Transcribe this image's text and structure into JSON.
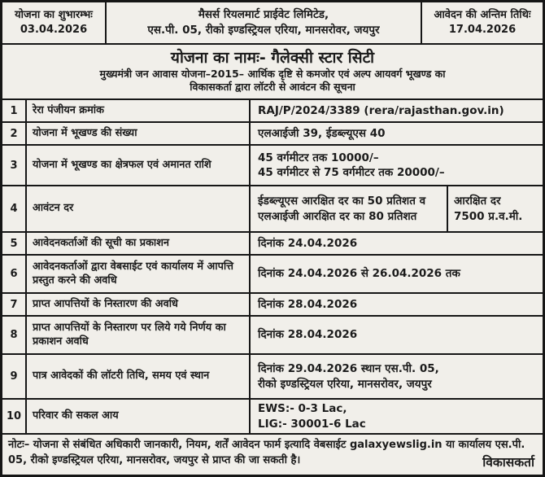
{
  "colors": {
    "border": "#161616",
    "background": "#f1efea",
    "text": "#1b1b1b"
  },
  "header": {
    "left": {
      "line1": "योजना का शुभारम्भः",
      "line2": "03.04.2026"
    },
    "center": {
      "line1": "मैसर्स रियलमार्ट प्राईवेट लिमिटेड,",
      "line2": "एस.पी. 05, रीको इण्डस्ट्रियल एरिया, मानसरोवर, जयपुर"
    },
    "right": {
      "line1": "आवेदन की अन्तिम तिथिः",
      "line2": "17.04.2026"
    }
  },
  "title": {
    "main": "योजना का नामः- गैलेक्सी स्टार सिटी",
    "sub1": "मुख्यमंत्री जन आवास योजना–2015– आर्थिक दृष्टि से कमजोर एवं अल्प आयवर्ग भूखण्ड का",
    "sub2": "विकासकर्ता द्वारा लॉटरी से आवंटन की सूचना"
  },
  "rows": [
    {
      "no": "1",
      "label": "रेरा पंजीयन क्रमांक",
      "value1": "RAJ/P/2024/3389 (rera/rajasthan.gov.in)"
    },
    {
      "no": "2",
      "label": "योजना में भूखण्ड की संख्या",
      "value1": "एलआईजी 39, ईडब्ल्यूएस 40"
    },
    {
      "no": "3",
      "label": "योजना में भूखण्ड का क्षेत्रफल एवं अमानत राशि",
      "value1": "45 वर्गमीटर तक 10000/–",
      "value2": "45 वर्गमीटर से 75 वर्गमीटर तक 20000/–"
    },
    {
      "no": "4",
      "label": "आवंटन दर",
      "value1": "ईडब्ल्यूएस आरक्षित दर का 50 प्रतिशत व",
      "value2": "एलआईजी आरक्षित दर का 80 प्रतिशत",
      "sub1": "आरक्षित दर",
      "sub2": "7500 प्र.व.मी."
    },
    {
      "no": "5",
      "label": "आवेदनकर्ताओं की सूची का प्रकाशन",
      "value1": "दिनांक 24.04.2026"
    },
    {
      "no": "6",
      "label": "आवेदनकर्ताओं द्वारा वेबसाईट एवं कार्यालय में आपत्ति प्रस्तुत करने की अवधि",
      "value1": "दिनांक 24.04.2026 से 26.04.2026 तक"
    },
    {
      "no": "7",
      "label": "प्राप्त आपत्तियों के निस्तारण की अवधि",
      "value1": "दिनांक 28.04.2026"
    },
    {
      "no": "8",
      "label": "प्राप्त आपत्तियों के निस्तारण पर लिये गये निर्णय का प्रकाशन अवधि",
      "value1": "दिनांक 28.04.2026"
    },
    {
      "no": "9",
      "label": "पात्र आवेदकों की लॉटरी तिथि, समय एवं स्थान",
      "value1": "दिनांक 29.04.2026 स्थान एस.पी. 05,",
      "value2": "रीको इण्डस्ट्रियल एरिया, मानसरोवर, जयपुर"
    },
    {
      "no": "10",
      "label": "परिवार की सकल आय",
      "value1": "EWS:- 0-3 Lac,",
      "value2": "LIG:- 30001-6 Lac"
    }
  ],
  "note": {
    "text": "नोटः– योजना से संबंधित अधिकारी जानकारी, नियम, शर्तें आवेदन फार्म इत्यादि वेबसाईट galaxyewslig.in या कार्यालय एस.पी. 05, रीको इण्डस्ट्रियल एरिया, मानसरोवर, जयपुर से प्राप्त की जा सकती है।",
    "sign": "विकासकर्ता"
  }
}
